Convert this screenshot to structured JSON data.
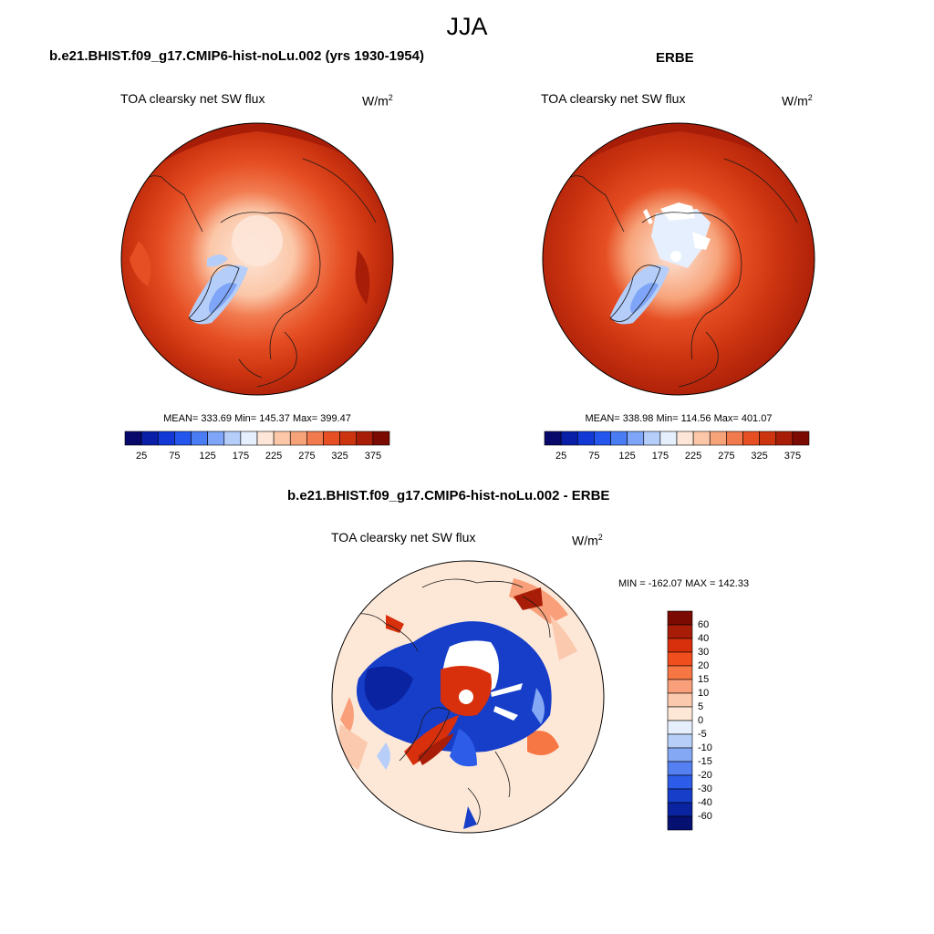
{
  "season": "JJA",
  "panels": [
    {
      "title": "b.e21.BHIST.f09_g17.CMIP6-hist-noLu.002 (yrs 1930-1954)",
      "field": "TOA clearsky net SW flux",
      "units_base": "W/m",
      "units_exp": "2",
      "stats": "MEAN= 333.69  Min= 145.37  Max= 399.47"
    },
    {
      "title": "ERBE",
      "field": "TOA clearsky net SW flux",
      "units_base": "W/m",
      "units_exp": "2",
      "stats": "MEAN= 338.98  Min= 114.56  Max= 401.07"
    },
    {
      "title": "b.e21.BHIST.f09_g17.CMIP6-hist-noLu.002 - ERBE",
      "field": "TOA clearsky net SW flux",
      "units_base": "W/m",
      "units_exp": "2",
      "stats": "MIN = -162.07 MAX = 142.33"
    }
  ],
  "abs_colorbar": {
    "labels": [
      "25",
      "75",
      "125",
      "175",
      "225",
      "275",
      "325",
      "375"
    ],
    "colors": [
      "#08086b",
      "#0a1fa8",
      "#1238d6",
      "#2456ee",
      "#4a7cf4",
      "#7ea5f7",
      "#b4cdf9",
      "#e6effd",
      "#fde6d8",
      "#fbc7a8",
      "#f7a37a",
      "#f27a4f",
      "#e64f24",
      "#cc3410",
      "#a81d08",
      "#7a0a02"
    ]
  },
  "diff_colorbar": {
    "labels": [
      "60",
      "40",
      "30",
      "20",
      "15",
      "10",
      "5",
      "0",
      "-5",
      "-10",
      "-15",
      "-20",
      "-30",
      "-40",
      "-60"
    ],
    "colors": [
      "#7a0a02",
      "#a81d08",
      "#d8300c",
      "#f04e1c",
      "#f77744",
      "#f9a07a",
      "#fbc9ad",
      "#fde8d8",
      "#e6effd",
      "#b7cff8",
      "#84a8f4",
      "#5580f1",
      "#2c5ce8",
      "#163ec9",
      "#0a23a0",
      "#061070"
    ]
  },
  "colors": {
    "map_outline": "#000000",
    "text": "#000000"
  }
}
